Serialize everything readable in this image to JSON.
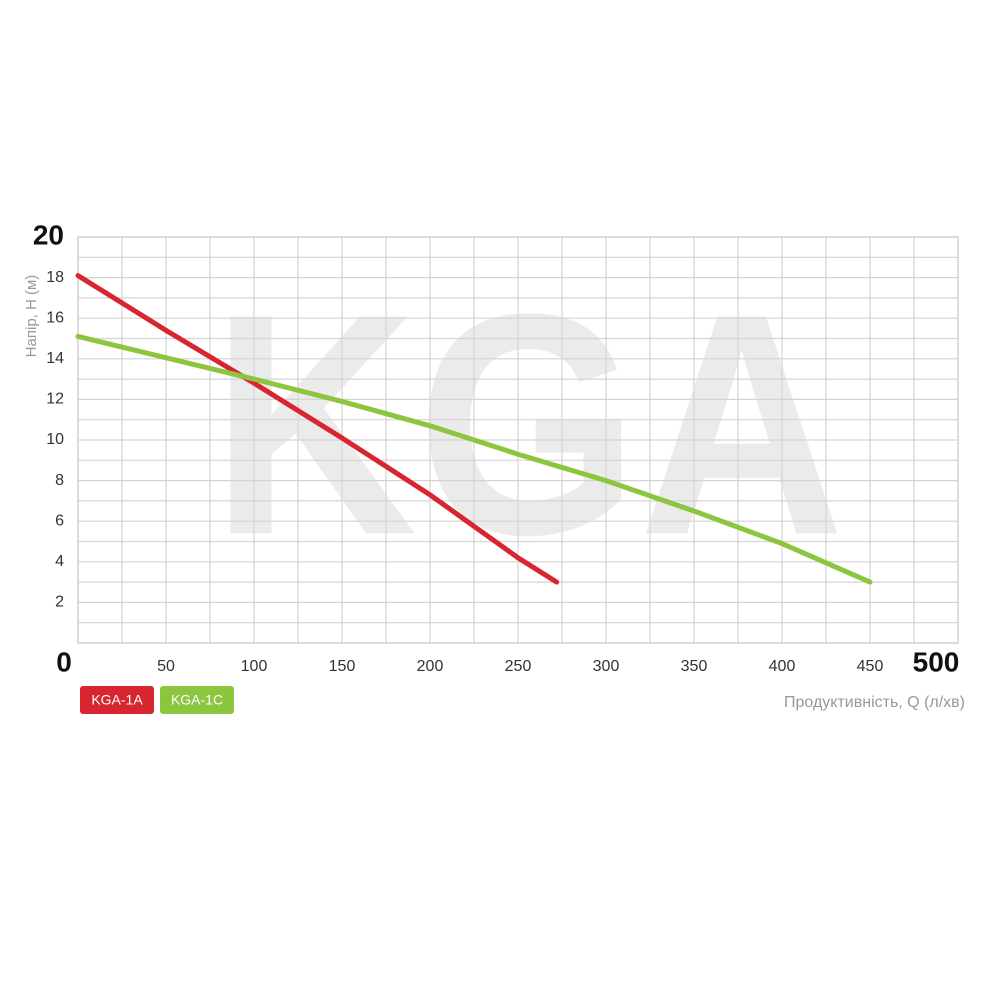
{
  "chart_data": {
    "type": "line",
    "watermark": "KGA",
    "y_label": "Напір, H (м)",
    "x_label": "Продуктивність, Q (л/хв)",
    "xlim": [
      0,
      500
    ],
    "ylim": [
      0,
      20
    ],
    "xticks": [
      0,
      50,
      100,
      150,
      200,
      250,
      300,
      350,
      400,
      450,
      500
    ],
    "yticks": [
      2,
      4,
      6,
      8,
      10,
      12,
      14,
      16,
      18,
      20
    ],
    "grid": true,
    "legend": "bottom-left",
    "series": [
      {
        "name": "KGA-1A",
        "color": "#d7262f",
        "x": [
          0,
          50,
          100,
          150,
          200,
          250,
          272
        ],
        "values": [
          18.1,
          15.4,
          12.8,
          10.1,
          7.3,
          4.2,
          3.0
        ]
      },
      {
        "name": "KGA-1C",
        "color": "#8cc63f",
        "x": [
          0,
          100,
          150,
          200,
          250,
          300,
          350,
          400,
          450
        ],
        "values": [
          15.1,
          13.0,
          11.9,
          10.7,
          9.3,
          8.0,
          6.5,
          4.9,
          3.0
        ]
      }
    ]
  }
}
